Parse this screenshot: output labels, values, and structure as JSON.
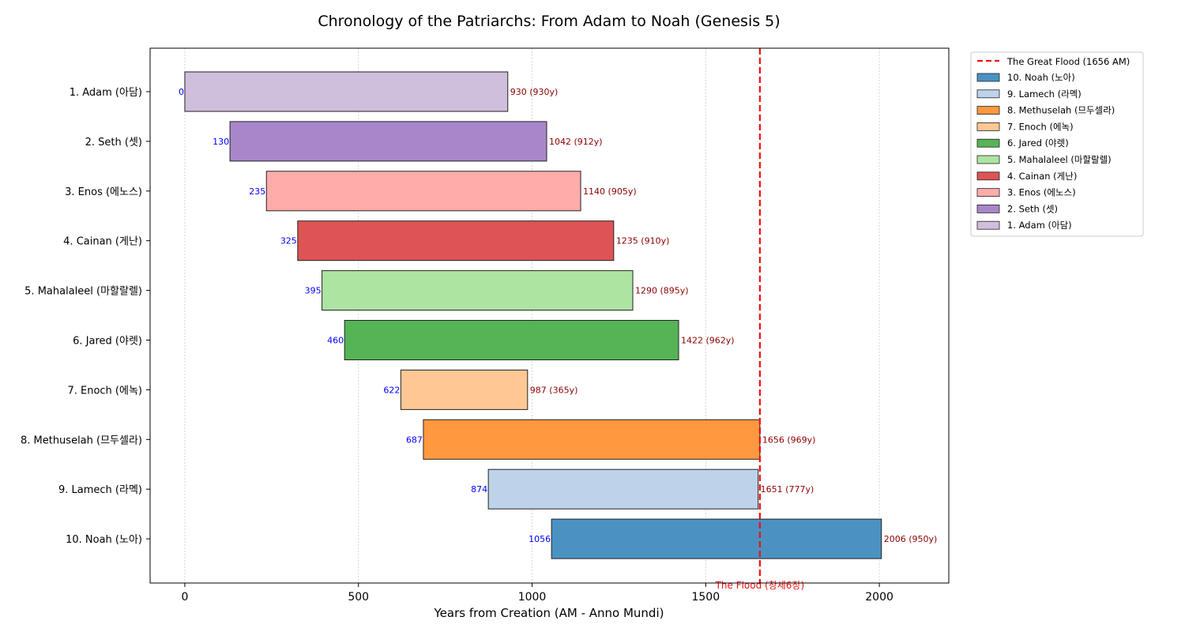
{
  "chart_data": {
    "type": "bar",
    "orientation": "horizontal-gantt",
    "title": "Chronology of the Patriarchs: From Adam to Noah (Genesis 5)",
    "xlabel": "Years from Creation (AM - Anno Mundi)",
    "ylabel": "",
    "xlim": [
      -100,
      2200
    ],
    "xticks": [
      0,
      500,
      1000,
      1500,
      2000
    ],
    "grid": true,
    "legend_position": "outside-top-right",
    "series": [
      {
        "name": "1. Adam (아담)",
        "start": 0,
        "end": 930,
        "lifespan": 930,
        "end_label": "930 (930y)",
        "color": "#d0bfdc"
      },
      {
        "name": "2. Seth (셋)",
        "start": 130,
        "end": 1042,
        "lifespan": 912,
        "end_label": "1042 (912y)",
        "color": "#a986c9"
      },
      {
        "name": "3. Enos (에노스)",
        "start": 235,
        "end": 1140,
        "lifespan": 905,
        "end_label": "1140 (905y)",
        "color": "#ffacab"
      },
      {
        "name": "4. Cainan (게난)",
        "start": 325,
        "end": 1235,
        "lifespan": 910,
        "end_label": "1235 (910y)",
        "color": "#de5354"
      },
      {
        "name": "5. Mahalaleel (마할랄렐)",
        "start": 395,
        "end": 1290,
        "lifespan": 895,
        "end_label": "1290 (895y)",
        "color": "#ade4a1"
      },
      {
        "name": "6. Jared (야렛)",
        "start": 460,
        "end": 1422,
        "lifespan": 962,
        "end_label": "1422 (962y)",
        "color": "#56b356"
      },
      {
        "name": "7. Enoch (에녹)",
        "start": 622,
        "end": 987,
        "lifespan": 365,
        "end_label": "987 (365y)",
        "color": "#ffc793"
      },
      {
        "name": "8. Methuselah (므두셀라)",
        "start": 687,
        "end": 1656,
        "lifespan": 969,
        "end_label": "1656 (969y)",
        "color": "#ff983f"
      },
      {
        "name": "9. Lamech (라멕)",
        "start": 874,
        "end": 1651,
        "lifespan": 777,
        "end_label": "1651 (777y)",
        "color": "#bed2ea"
      },
      {
        "name": "10. Noah (노아)",
        "start": 1056,
        "end": 2006,
        "lifespan": 950,
        "end_label": "2006 (950y)",
        "color": "#4b92c3"
      }
    ],
    "flood_line": {
      "x": 1656,
      "legend_label": "The Great Flood (1656 AM)",
      "annotation": "The Flood (창세6장)",
      "color": "#ee1111"
    },
    "start_label_color": "#0000ff",
    "end_label_color": "#8b0000"
  }
}
